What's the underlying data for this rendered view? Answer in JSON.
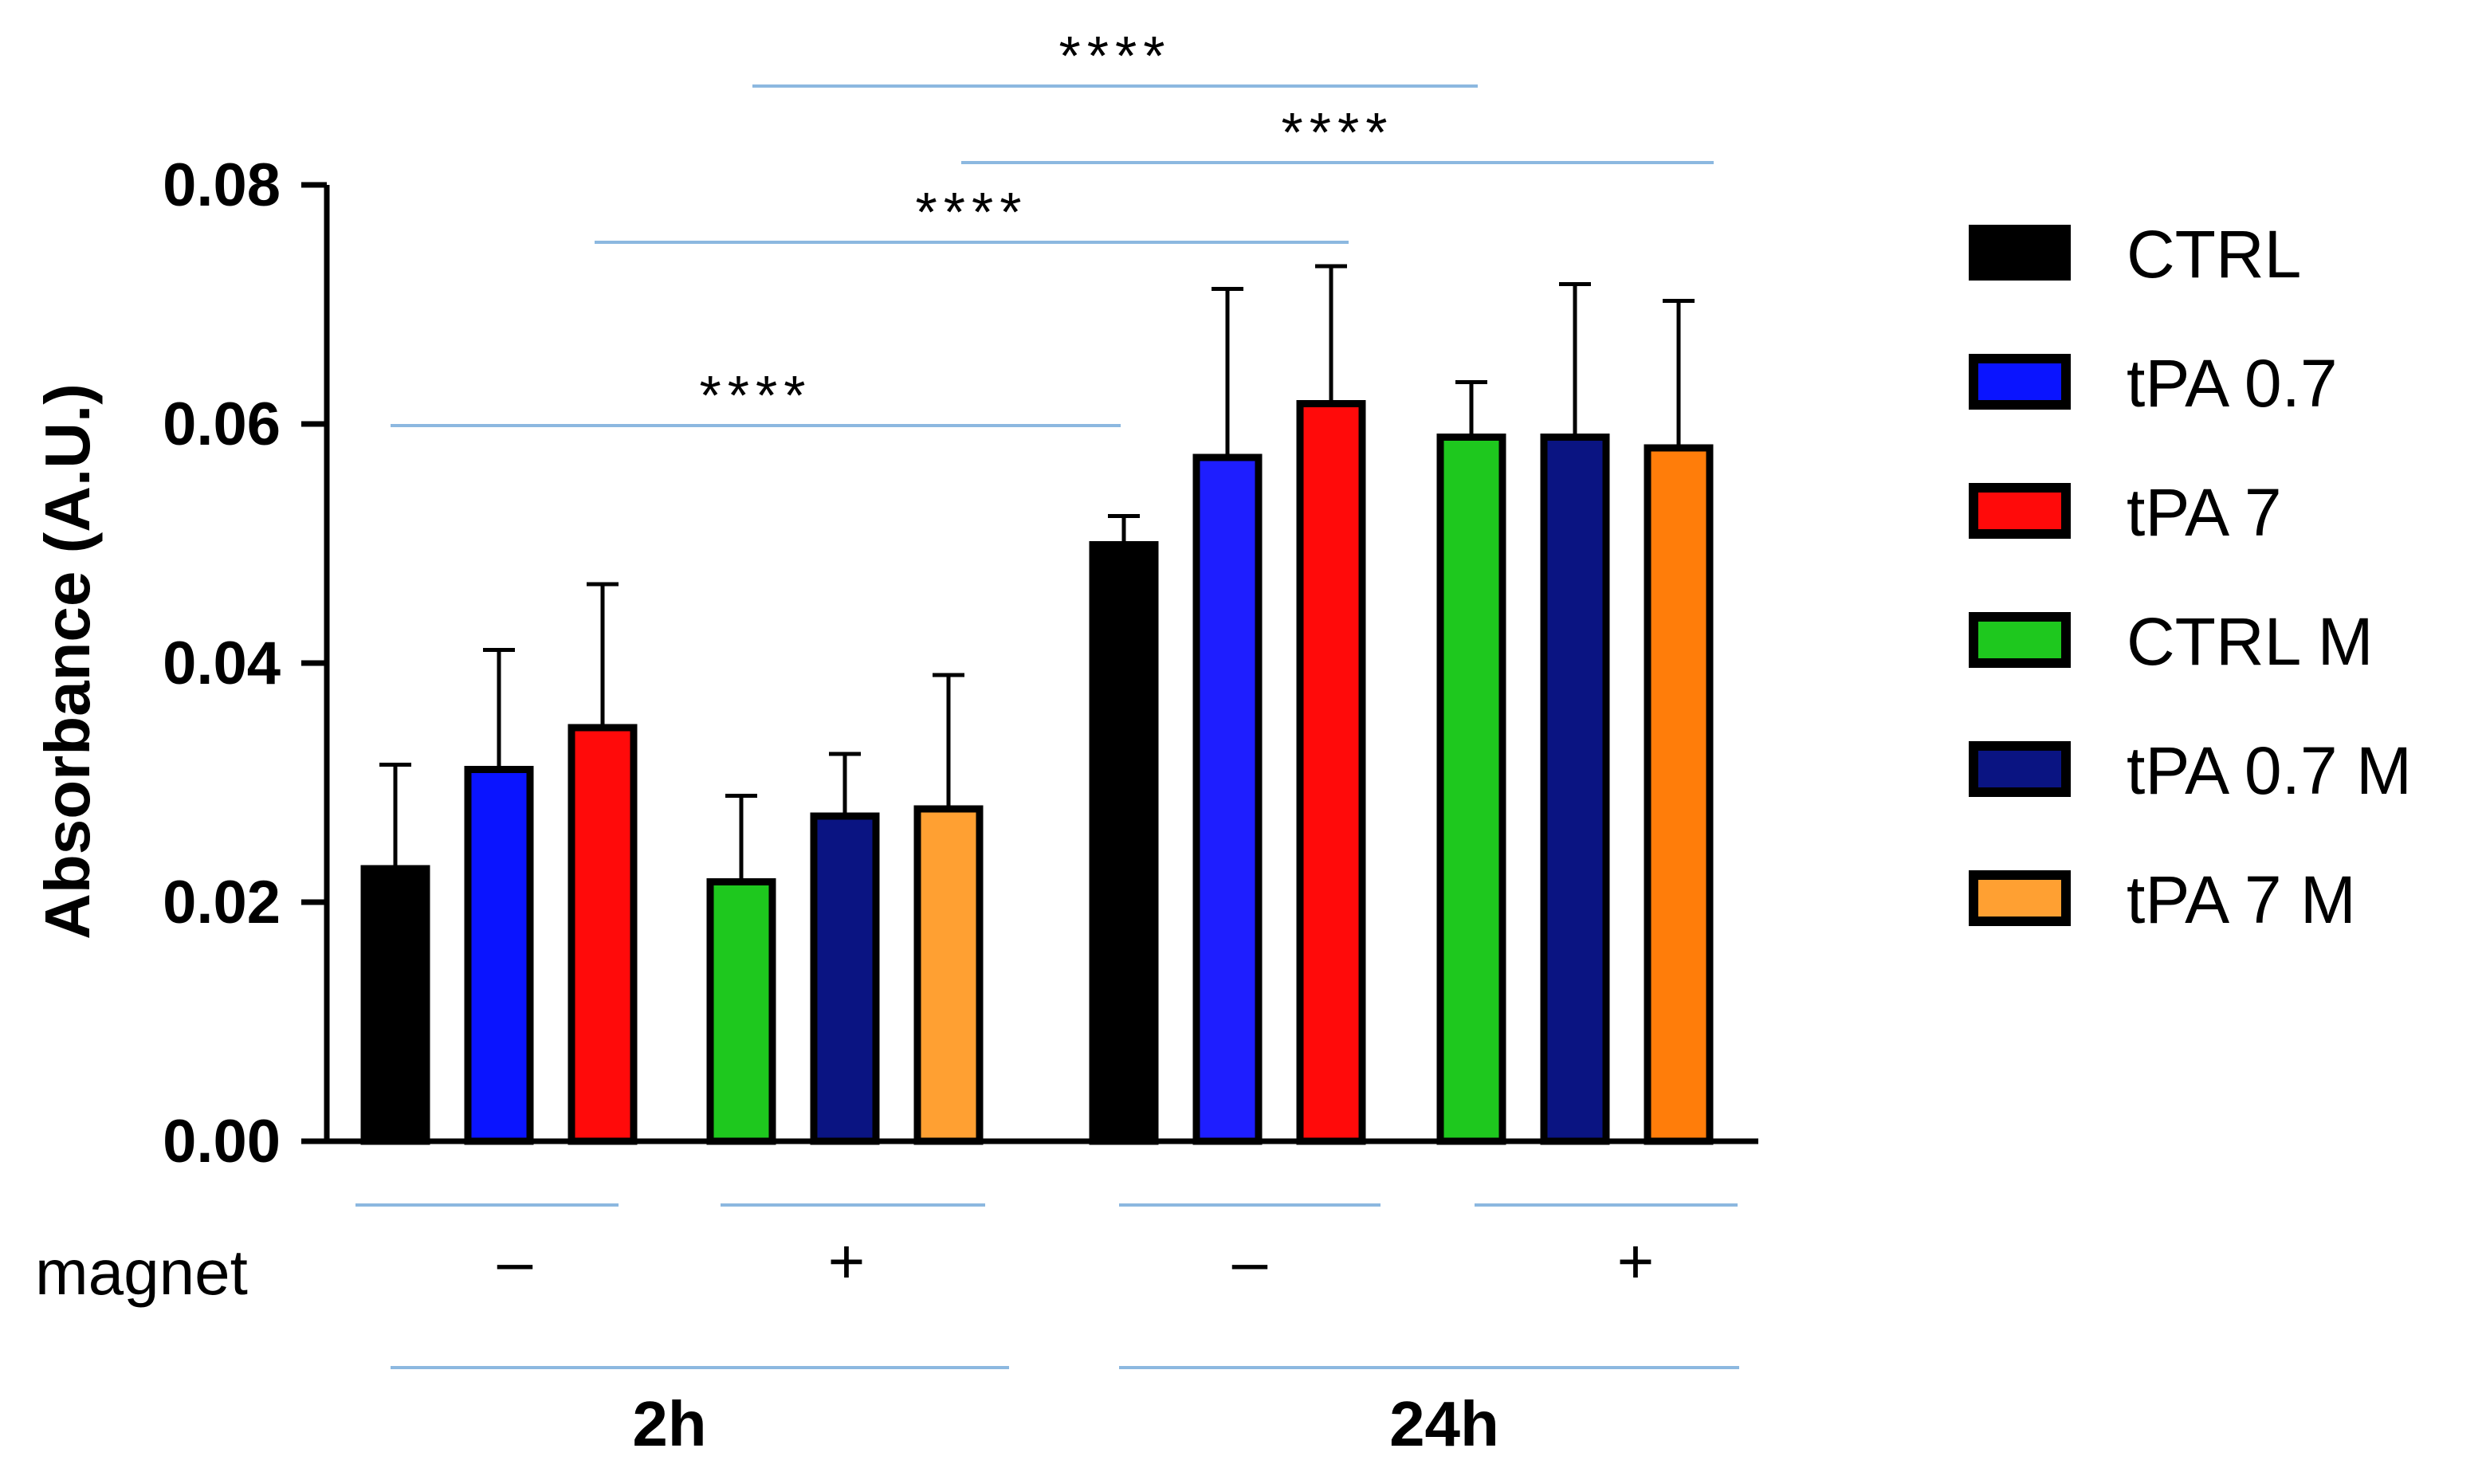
{
  "chart_data": {
    "type": "bar",
    "ylabel": "Absorbance (A.U.)",
    "ylim": [
      0,
      0.08
    ],
    "yticks": [
      "0.00",
      "0.02",
      "0.04",
      "0.06",
      "0.08"
    ],
    "series": [
      {
        "name": "CTRL",
        "color": "#000000",
        "values": [
          0.0228,
          0.0499
        ],
        "errors": [
          0.0087,
          0.0024
        ]
      },
      {
        "name": "tPA 0.7",
        "color": "#0a14ff",
        "values": [
          0.0311,
          0.0572
        ],
        "errors": [
          0.01,
          0.0141
        ]
      },
      {
        "name": "tPA 7",
        "color": "#ff0a0a",
        "values": [
          0.0346,
          0.0617
        ],
        "errors": [
          0.012,
          0.0115
        ]
      },
      {
        "name": "CTRL M",
        "color": "#1ec81e",
        "values": [
          0.0217,
          0.0589
        ],
        "errors": [
          0.0072,
          0.0046
        ]
      },
      {
        "name": "tPA 0.7 M",
        "color": "#0a1482",
        "values": [
          0.0272,
          0.0589
        ],
        "errors": [
          0.0052,
          0.0128
        ]
      },
      {
        "name": "tPA 7 M",
        "color": "#ffa032",
        "values": [
          0.0278,
          0.058
        ],
        "errors": [
          0.0112,
          0.0123
        ]
      }
    ],
    "group_colors": [
      [
        "#000000",
        "#0a14ff",
        "#ff0a0a",
        "#1ec81e",
        "#0a1482",
        "#ffa032"
      ],
      [
        "#000000",
        "#1e1eff",
        "#ff0a0a",
        "#1ec81e",
        "#0a1482",
        "#ff7d0a"
      ]
    ],
    "magnet_label": "magnet",
    "magnet_groups": [
      "–",
      "+",
      "–",
      "+"
    ],
    "time_groups": [
      "2h",
      "24h"
    ],
    "significance": [
      {
        "label": "****",
        "from_bar": 0,
        "to_bar": 6
      },
      {
        "label": "****",
        "from_bar": 2,
        "to_bar": 9
      },
      {
        "label": "****",
        "from_bar": 4,
        "to_bar": 11
      },
      {
        "label": "****",
        "from_bar": 7,
        "to_bar": 12
      }
    ],
    "line_color": "#8cb8e0"
  }
}
